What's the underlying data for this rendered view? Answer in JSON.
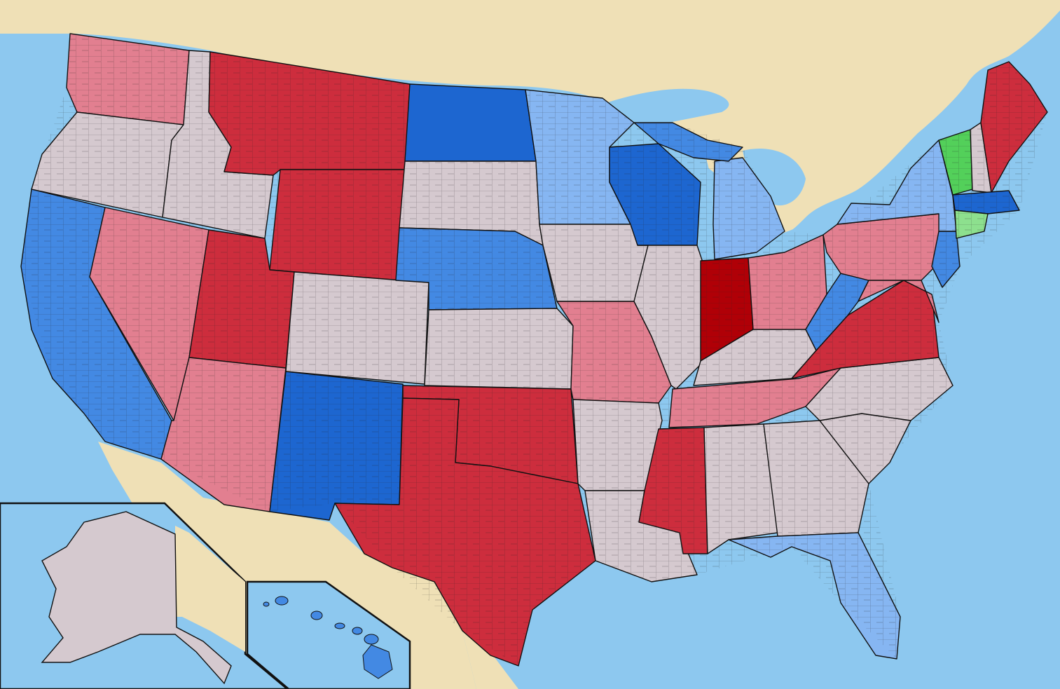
{
  "map": {
    "colors": {
      "ocean": "#8dc8ef",
      "land_foreign": "#efe0b6",
      "no_data": "#d5c9cf",
      "border": "#111111",
      "red_darkest": "#b00007",
      "red_dark": "#cd2d3d",
      "red_medium": "#dc3136",
      "red_light": "#e27f90",
      "red_pale": "#f2b3be",
      "blue_darkest": "#0d4ab9",
      "blue_dark": "#1d66d0",
      "blue_medium": "#4389e3",
      "blue_light": "#86b6f2",
      "blue_pale": "#bcd7fb",
      "green_dark": "#53d05a",
      "green_light": "#8de08e"
    },
    "regions": [
      {
        "name": "washington",
        "fill": "red_light"
      },
      {
        "name": "oregon",
        "fill": "no_data"
      },
      {
        "name": "california",
        "fill": "blue_medium"
      },
      {
        "name": "nevada",
        "fill": "red_light"
      },
      {
        "name": "idaho",
        "fill": "no_data"
      },
      {
        "name": "montana",
        "fill": "red_dark"
      },
      {
        "name": "wyoming",
        "fill": "red_dark"
      },
      {
        "name": "utah",
        "fill": "red_dark"
      },
      {
        "name": "colorado",
        "fill": "no_data"
      },
      {
        "name": "arizona",
        "fill": "red_light"
      },
      {
        "name": "new-mexico",
        "fill": "blue_dark"
      },
      {
        "name": "north-dakota",
        "fill": "blue_dark"
      },
      {
        "name": "south-dakota",
        "fill": "no_data"
      },
      {
        "name": "nebraska",
        "fill": "blue_medium"
      },
      {
        "name": "kansas",
        "fill": "no_data"
      },
      {
        "name": "oklahoma",
        "fill": "red_dark"
      },
      {
        "name": "texas",
        "fill": "red_dark"
      },
      {
        "name": "minnesota",
        "fill": "blue_light"
      },
      {
        "name": "iowa",
        "fill": "no_data"
      },
      {
        "name": "missouri",
        "fill": "red_light"
      },
      {
        "name": "arkansas",
        "fill": "no_data"
      },
      {
        "name": "louisiana",
        "fill": "no_data"
      },
      {
        "name": "wisconsin",
        "fill": "blue_dark"
      },
      {
        "name": "illinois",
        "fill": "no_data"
      },
      {
        "name": "michigan",
        "fill": "blue_light"
      },
      {
        "name": "indiana",
        "fill": "red_darkest"
      },
      {
        "name": "ohio",
        "fill": "red_light"
      },
      {
        "name": "kentucky",
        "fill": "no_data"
      },
      {
        "name": "tennessee",
        "fill": "red_light"
      },
      {
        "name": "mississippi",
        "fill": "red_dark"
      },
      {
        "name": "alabama",
        "fill": "no_data"
      },
      {
        "name": "georgia",
        "fill": "no_data"
      },
      {
        "name": "florida",
        "fill": "blue_light"
      },
      {
        "name": "south-carolina",
        "fill": "no_data"
      },
      {
        "name": "north-carolina",
        "fill": "no_data"
      },
      {
        "name": "virginia",
        "fill": "red_dark"
      },
      {
        "name": "west-virginia",
        "fill": "blue_medium"
      },
      {
        "name": "pennsylvania",
        "fill": "red_light"
      },
      {
        "name": "new-york",
        "fill": "blue_light"
      },
      {
        "name": "vermont",
        "fill": "green_dark"
      },
      {
        "name": "new-hampshire",
        "fill": "no_data"
      },
      {
        "name": "maine",
        "fill": "red_dark"
      },
      {
        "name": "massachusetts",
        "fill": "blue_dark"
      },
      {
        "name": "connecticut",
        "fill": "green_light"
      },
      {
        "name": "new-jersey",
        "fill": "blue_medium"
      },
      {
        "name": "maryland",
        "fill": "red_light"
      },
      {
        "name": "alaska",
        "fill": "no_data"
      },
      {
        "name": "hawaii",
        "fill": "blue_medium"
      }
    ]
  }
}
